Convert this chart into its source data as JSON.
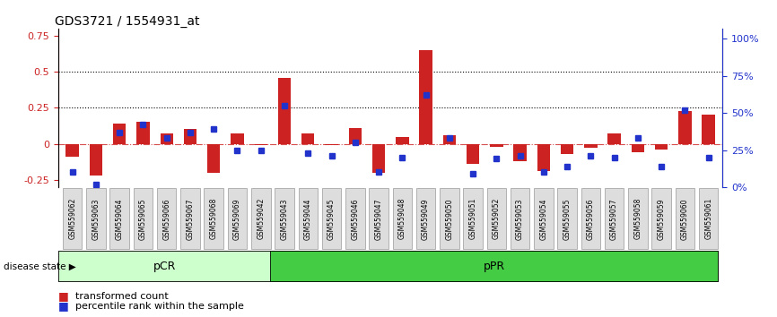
{
  "title": "GDS3721 / 1554931_at",
  "samples": [
    "GSM559062",
    "GSM559063",
    "GSM559064",
    "GSM559065",
    "GSM559066",
    "GSM559067",
    "GSM559068",
    "GSM559069",
    "GSM559042",
    "GSM559043",
    "GSM559044",
    "GSM559045",
    "GSM559046",
    "GSM559047",
    "GSM559048",
    "GSM559049",
    "GSM559050",
    "GSM559051",
    "GSM559052",
    "GSM559053",
    "GSM559054",
    "GSM559055",
    "GSM559056",
    "GSM559057",
    "GSM559058",
    "GSM559059",
    "GSM559060",
    "GSM559061"
  ],
  "red_bars": [
    -0.09,
    -0.22,
    0.14,
    0.15,
    0.07,
    0.1,
    -0.2,
    0.07,
    -0.01,
    0.46,
    0.07,
    -0.01,
    0.11,
    -0.2,
    0.05,
    0.65,
    0.06,
    -0.14,
    -0.02,
    -0.12,
    -0.19,
    -0.07,
    -0.03,
    0.07,
    -0.06,
    -0.04,
    0.23,
    0.2
  ],
  "blue_squares_pct": [
    10,
    2,
    37,
    42,
    33,
    37,
    39,
    25,
    25,
    55,
    23,
    21,
    30,
    10,
    20,
    62,
    33,
    9,
    19,
    21,
    10,
    14,
    21,
    20,
    33,
    14,
    52,
    20
  ],
  "pCR_count": 9,
  "ylim_left": [
    -0.3,
    0.8
  ],
  "ylim_right": [
    0,
    107
  ],
  "yticks_left": [
    -0.25,
    0.0,
    0.25,
    0.5,
    0.75
  ],
  "yticks_right": [
    0,
    25,
    50,
    75,
    100
  ],
  "ytick_labels_left": [
    "-0.25",
    "0",
    "0.25",
    "0.5",
    "0.75"
  ],
  "ytick_labels_right": [
    "0%",
    "25%",
    "50%",
    "75%",
    "100%"
  ],
  "hlines": [
    0.25,
    0.5
  ],
  "bar_color": "#cc2222",
  "square_color": "#2233cc",
  "pCR_color": "#ccffcc",
  "pPR_color": "#44cc44",
  "tick_label_color_left": "#cc2222",
  "tick_label_color_right": "#2233cc",
  "pCR_label": "pCR",
  "pPR_label": "pPR",
  "disease_state_label": "disease state",
  "legend_red": "transformed count",
  "legend_blue": "percentile rank within the sample",
  "bar_width": 0.55
}
